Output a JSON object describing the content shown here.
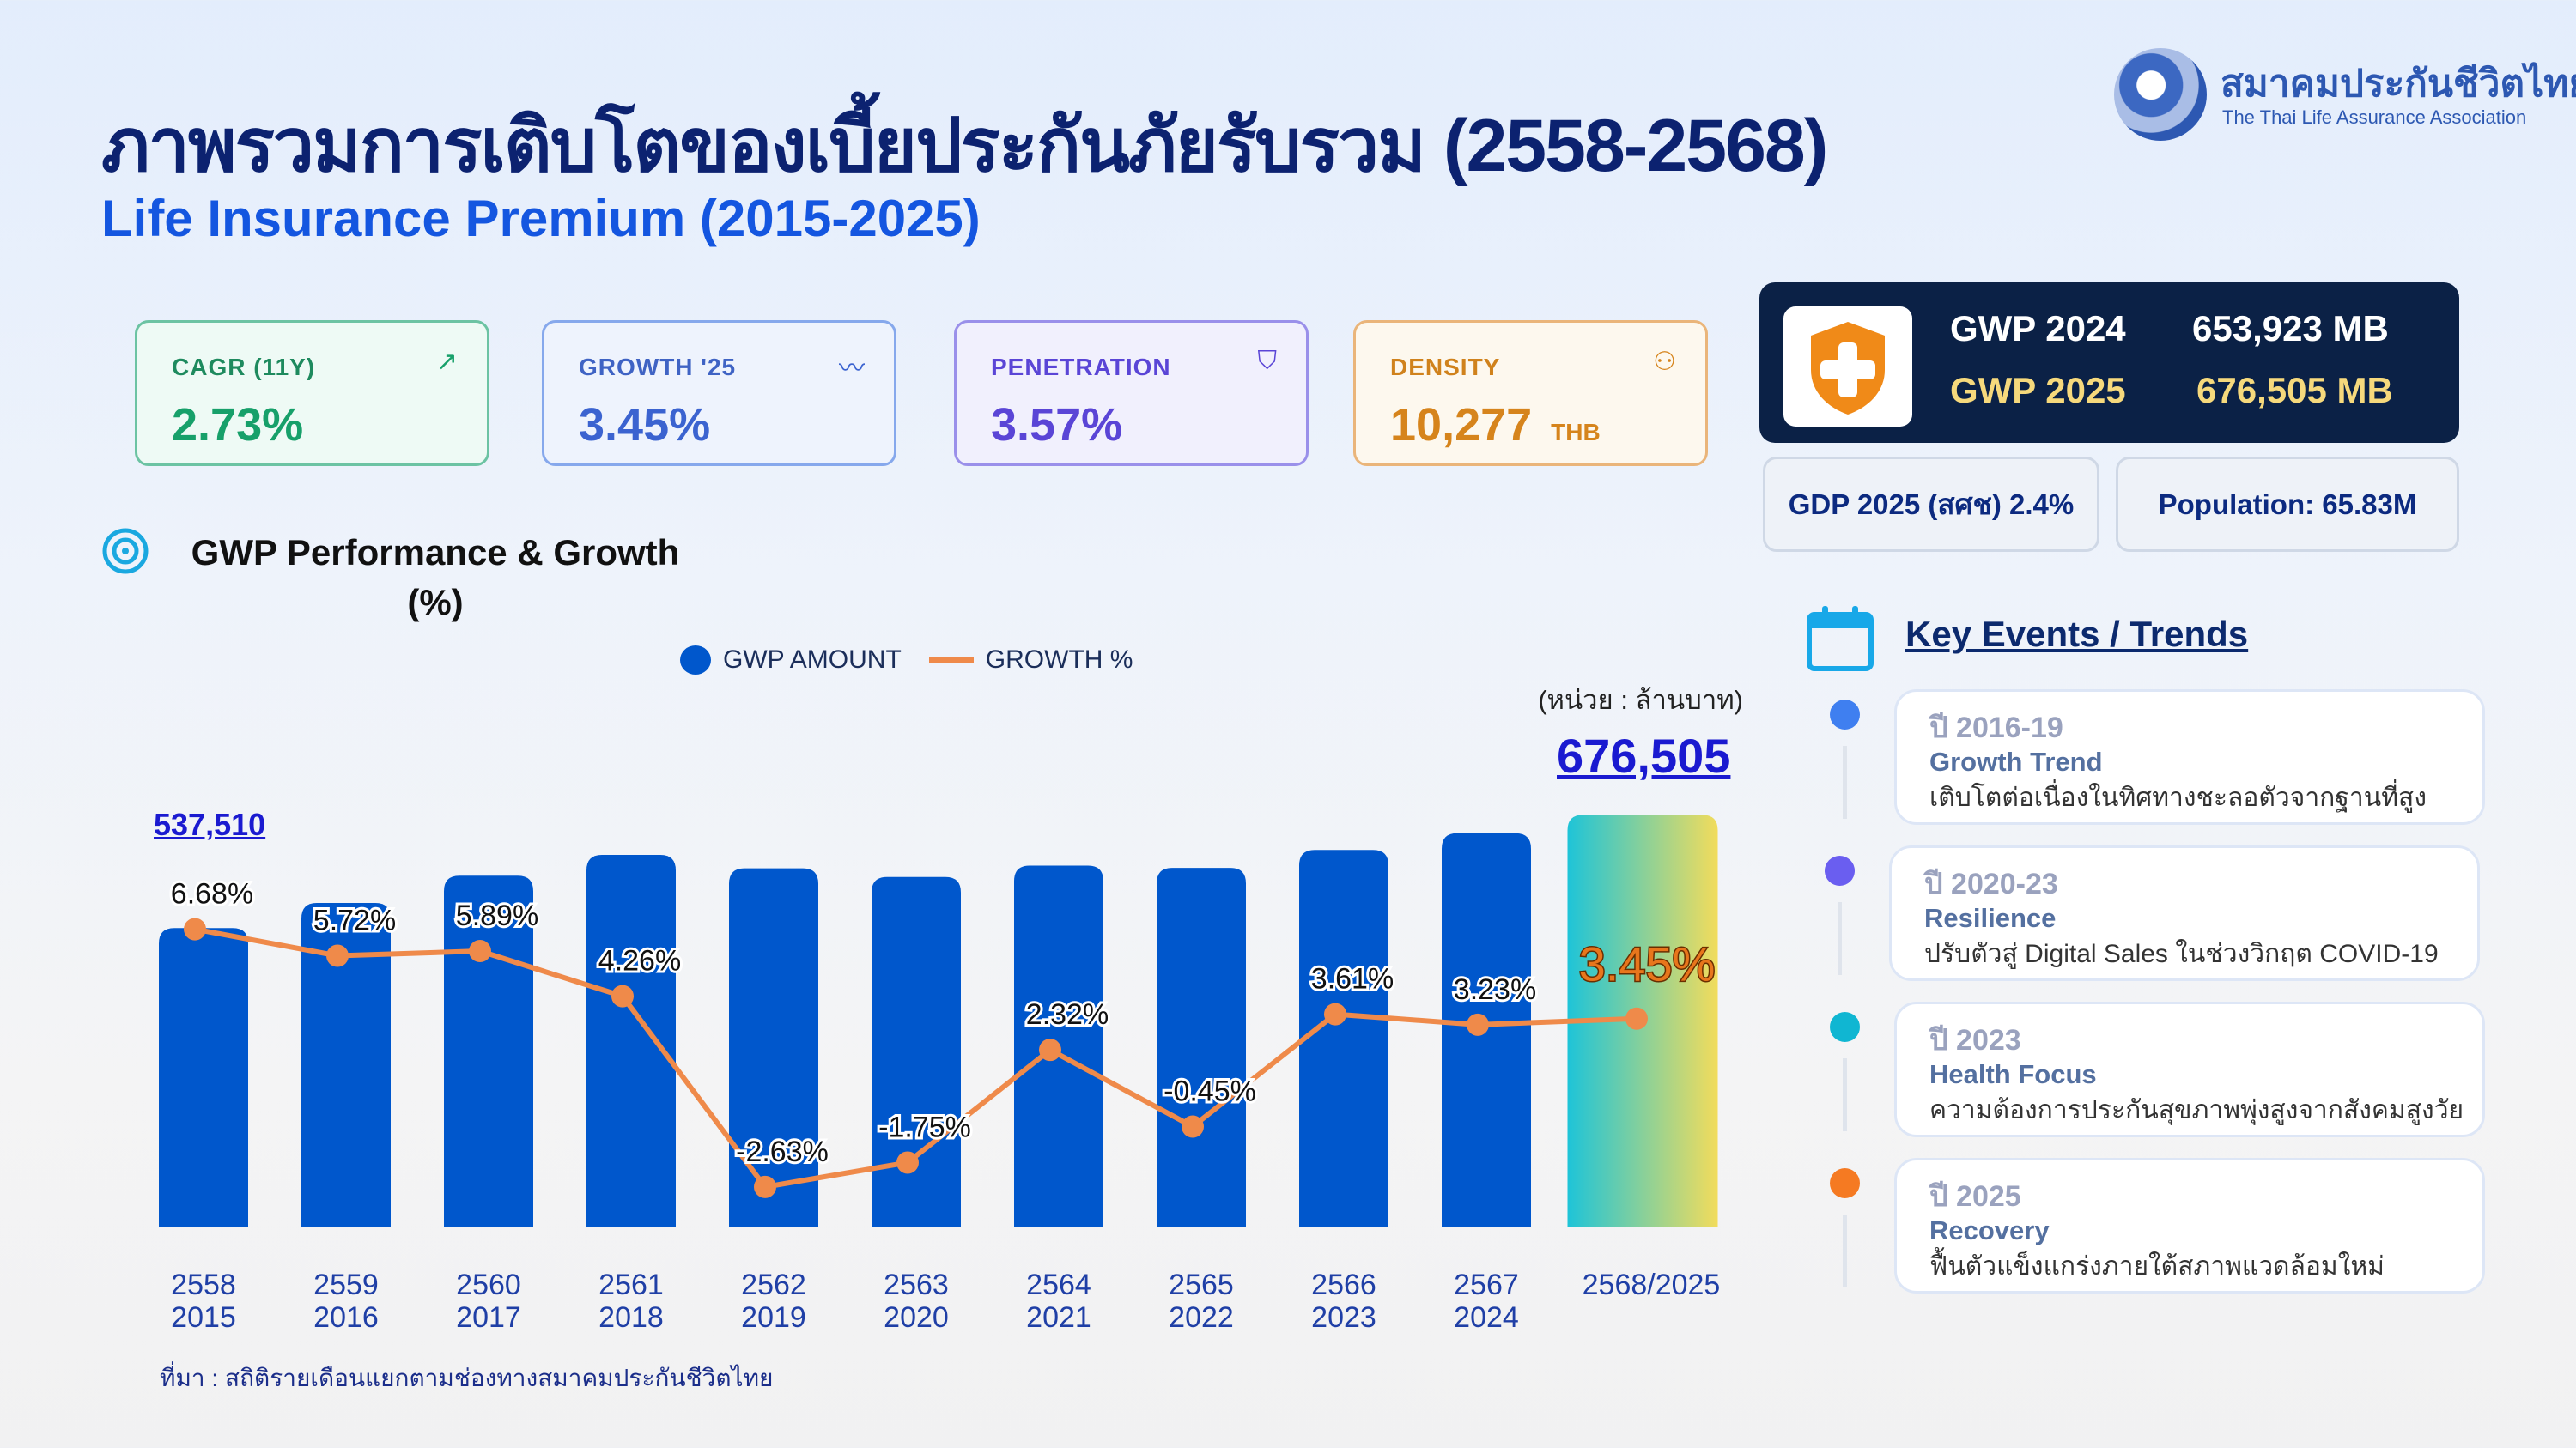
{
  "header": {
    "title": "ภาพรวมการเติบโตของเบี้ยประกันภัยรับรวม  (2558-2568)",
    "subtitle": "Life Insurance Premium (2015-2025)",
    "logo_th": "สมาคมประกันชีวิตไทย",
    "logo_en": "The Thai Life Assurance Association"
  },
  "kpis": [
    {
      "label": "CAGR (11Y)",
      "value": "2.73%",
      "icon": "trending-up-icon"
    },
    {
      "label": "GROWTH '25",
      "value": "3.45%",
      "icon": "pulse-icon"
    },
    {
      "label": "PENETRATION",
      "value": "3.57%",
      "icon": "shield-check-icon"
    },
    {
      "label": "DENSITY",
      "value": "10,277",
      "unit": "THB",
      "icon": "users-icon"
    }
  ],
  "gwp_box": {
    "row1_label": "GWP  2024",
    "row1_value": "653,923 MB",
    "row2_label": "GWP 2025",
    "row2_value": "676,505 MB"
  },
  "macro": {
    "gdp": "GDP 2025 (สศช)  2.4%",
    "population": "Population: 65.83M"
  },
  "section_title_1": "GWP Performance & Growth",
  "section_title_2": "(%)",
  "legend": {
    "bars": "GWP AMOUNT",
    "line": "GROWTH %"
  },
  "unit_label": "(หน่วย : ล้านบาท)",
  "first_value_label": "537,510",
  "last_value_label": "676,505",
  "source": "ที่มา : สถิติรายเดือนแยกตามช่องทางสมาคมประกันชีวิตไทย",
  "chart_data": {
    "type": "bar",
    "categories_th": [
      "2558",
      "2559",
      "2560",
      "2561",
      "2562",
      "2563",
      "2564",
      "2565",
      "2566",
      "2567",
      "2568/2025"
    ],
    "categories_en": [
      "2015",
      "2016",
      "2017",
      "2018",
      "2019",
      "2020",
      "2021",
      "2022",
      "2023",
      "2024",
      ""
    ],
    "series": [
      {
        "name": "GWP AMOUNT",
        "type": "bar",
        "values": [
          537510,
          568256,
          601726,
          627359,
          610859,
          600169,
          614093,
          611330,
          633399,
          653923,
          676505
        ]
      },
      {
        "name": "GROWTH %",
        "type": "line",
        "values": [
          6.68,
          5.72,
          5.89,
          4.26,
          -2.63,
          -1.75,
          2.32,
          -0.45,
          3.61,
          3.23,
          3.45
        ],
        "labels": [
          "6.68%",
          "5.72%",
          "5.89%",
          "4.26%",
          "-2.63%",
          "-1.75%",
          "2.32%",
          "-0.45%",
          "3.61%",
          "3.23%",
          "3.45%"
        ]
      }
    ],
    "colors": {
      "bar": "#0057cc",
      "line": "#ef8a4a",
      "highlight_start": "#1ec4d8",
      "highlight_end": "#f2dc5c"
    }
  },
  "events": {
    "title": "Key Events / Trends",
    "items": [
      {
        "year": "ปี 2016-19",
        "title": "Growth Trend",
        "desc": "เติบโตต่อเนื่องในทิศทางชะลอตัวจากฐานที่สูง",
        "color": "#3f7ff0"
      },
      {
        "year": "ปี 2020-23",
        "title": "Resilience",
        "desc": "ปรับตัวสู่ Digital Sales ในช่วงวิกฤต COVID-19",
        "color": "#6a5ef0"
      },
      {
        "year": "ปี 2023",
        "title": "Health Focus",
        "desc": "ความต้องการประกันสุขภาพพุ่งสูงจากสังคมสูงวัย",
        "color": "#10b6d2"
      },
      {
        "year": "ปี 2025",
        "title": "Recovery",
        "desc": "ฟื้นตัวแข็งแกร่งภายใต้สภาพแวดล้อมใหม่",
        "color": "#f57a22"
      }
    ]
  }
}
